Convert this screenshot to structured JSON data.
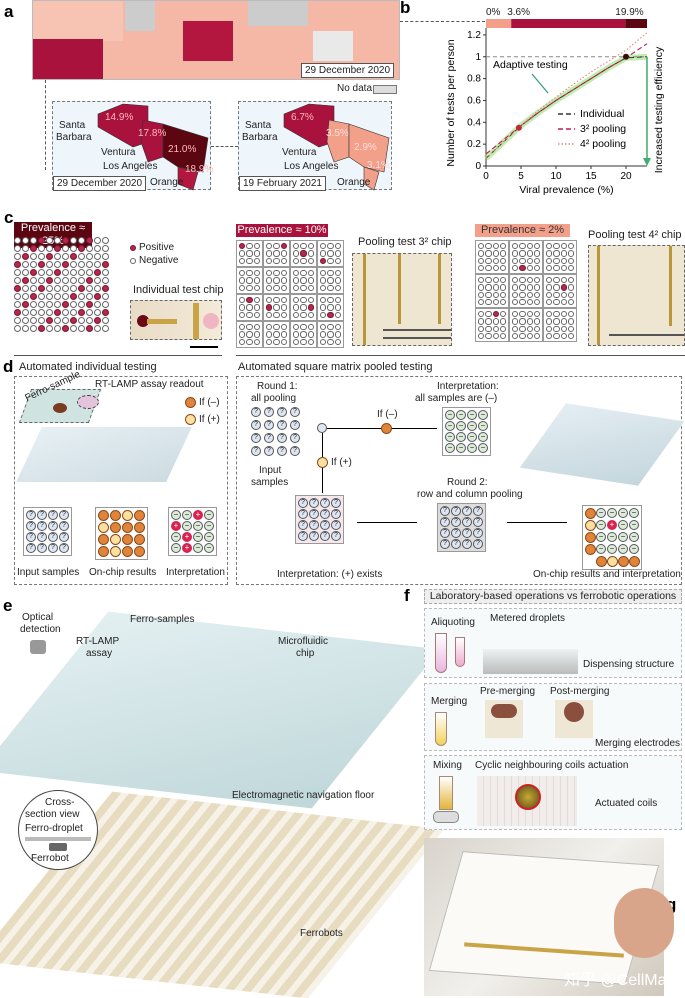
{
  "panels": {
    "a": "a",
    "b": "b",
    "c": "c",
    "d": "d",
    "e": "e",
    "f": "f",
    "g": "g"
  },
  "colors": {
    "dark": "#5c0611",
    "crimson": "#a8123c",
    "salmon": "#f3a08a",
    "nodata": "#d0d0d0",
    "green": "#3fae6a"
  },
  "a": {
    "map_date": "29 December 2020",
    "no_data": "No data",
    "inset1": {
      "date": "29 December 2020",
      "counties": [
        {
          "name": "Santa Barbara",
          "value": "14.9%"
        },
        {
          "name": "Ventura",
          "value": "17.8%"
        },
        {
          "name": "Los Angeles",
          "value": "21.0%"
        },
        {
          "name": "Orange",
          "value": "18.9%"
        }
      ]
    },
    "inset2": {
      "date": "19 February 2021",
      "counties": [
        {
          "name": "Santa Barbara",
          "value": "6.7%"
        },
        {
          "name": "Ventura",
          "value": "3.5%"
        },
        {
          "name": "Los Angeles",
          "value": "2.9%"
        },
        {
          "name": "Orange",
          "value": "3.1%"
        }
      ]
    },
    "labels": {
      "sb1": "Santa",
      "sb2": "Barbara",
      "ventura": "Ventura",
      "la": "Los Angeles",
      "orange": "Orange"
    }
  },
  "chart_data": {
    "type": "line",
    "xlabel": "Viral prevalence (%)",
    "ylabel": "Number of tests per person",
    "xlim": [
      0,
      23
    ],
    "ylim": [
      0,
      1.3
    ],
    "xticks": [
      "0",
      "5",
      "10",
      "15",
      "20"
    ],
    "yticks": [
      "0",
      "0.2",
      "0.4",
      "0.6",
      "0.8",
      "1",
      "1.2"
    ],
    "x": [
      0,
      2.5,
      5,
      7.5,
      10,
      12.5,
      15,
      17.5,
      20,
      23
    ],
    "series": [
      {
        "name": "Individual",
        "values": [
          1,
          1,
          1,
          1,
          1,
          1,
          1,
          1,
          1,
          1
        ],
        "color": "#333333",
        "style": "dashed"
      },
      {
        "name": "3² pooling",
        "values": [
          0.11,
          0.24,
          0.37,
          0.49,
          0.6,
          0.7,
          0.8,
          0.9,
          0.99,
          1.12
        ],
        "color": "#c2185b",
        "style": "dashed"
      },
      {
        "name": "4² pooling",
        "values": [
          0.07,
          0.22,
          0.37,
          0.51,
          0.63,
          0.75,
          0.86,
          0.96,
          1.06,
          1.22
        ],
        "color": "#e08a7a",
        "style": "dotted"
      }
    ],
    "highlight_points": [
      {
        "x": 4.7,
        "y": 0.35,
        "color": "#c0283c"
      },
      {
        "x": 20,
        "y": 1,
        "color": "#3a0a0a"
      }
    ],
    "top_bar": {
      "labels": [
        "0%",
        "3.6%",
        "19.9%"
      ],
      "segments": [
        {
          "from": 0,
          "to": 3.6,
          "color": "#f3a08a"
        },
        {
          "from": 3.6,
          "to": 19.9,
          "color": "#a8123c"
        },
        {
          "from": 19.9,
          "to": 23,
          "color": "#5c0611"
        }
      ]
    },
    "annotations": {
      "adaptive": "Adaptive testing",
      "efficiency": "Increased testing efficiency"
    },
    "legend": "bottom-right",
    "grid": false
  },
  "c": {
    "prev25": "Prevalence ≈ 25%",
    "prev10": "Prevalence ≈ 10%",
    "prev2": "Prevalence ≈ 2%",
    "positive": "Positive",
    "negative": "Negative",
    "individual_chip": "Individual test chip",
    "chip3": "Pooling test 3² chip",
    "chip4": "Pooling test 4² chip"
  },
  "d": {
    "left_title": "Automated individual testing",
    "ferro_sample": "Ferro-sample",
    "readout": "RT-LAMP assay readout",
    "if_neg": "If (–)",
    "if_pos": "If (+)",
    "input": "Input samples",
    "onchip": "On-chip results",
    "interp": "Interpretation",
    "right_title": "Automated square matrix pooled testing",
    "round1a": "Round 1:",
    "round1b": "all pooling",
    "input_a": "Input",
    "input_b": "samples",
    "interp_neg_a": "Interpretation:",
    "interp_neg_b": "all samples are (–)",
    "round2a": "Round 2:",
    "round2b": "row and column pooling",
    "interp_pos": "Interpretation: (+) exists",
    "final": "On-chip results and interpretation"
  },
  "e": {
    "optical_a": "Optical",
    "optical_b": "detection",
    "rtlamp_a": "RT-LAMP",
    "rtlamp_b": "assay",
    "ferro_samples": "Ferro-samples",
    "chip_a": "Microfluidic",
    "chip_b": "chip",
    "cross_a": "Cross-",
    "cross_b": "section view",
    "droplet": "Ferro-droplet",
    "ferrobot": "Ferrobot",
    "floor": "Electromagnetic navigation floor",
    "ferrobots": "Ferrobots"
  },
  "f": {
    "header": "Laboratory-based operations vs ferrobotic operations",
    "aliquoting": "Aliquoting",
    "metered": "Metered droplets",
    "dispensing": "Dispensing structure",
    "merging": "Merging",
    "pre": "Pre-merging",
    "post": "Post-merging",
    "electrodes": "Merging electrodes",
    "mixing": "Mixing",
    "cyclic": "Cyclic neighbouring coils actuation",
    "coils": "Actuated coils"
  },
  "g": {
    "watermark": "知乎 @CellMax"
  }
}
